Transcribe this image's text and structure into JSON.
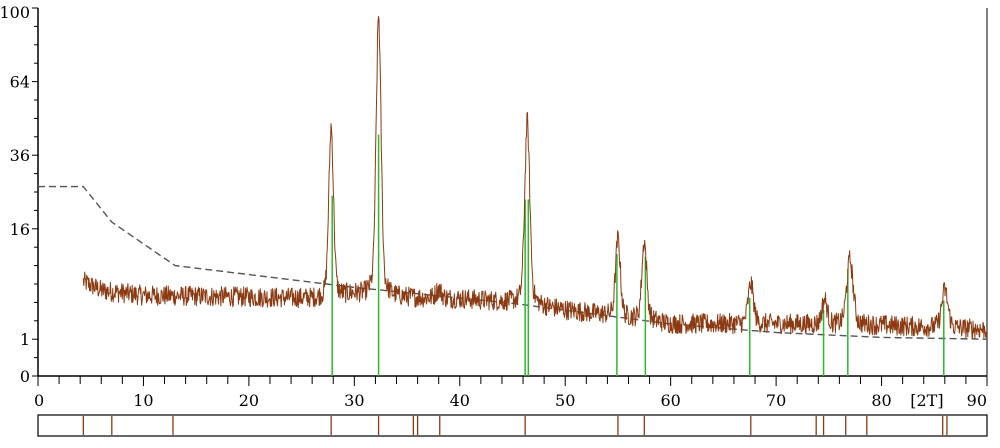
{
  "chart_data": {
    "type": "line",
    "title": "",
    "xlabel": "[2T]",
    "ylabel": "",
    "xlim": [
      0,
      90
    ],
    "ylim_sqrt": [
      0,
      100
    ],
    "y_scale": "square-root",
    "x_ticks": [
      0,
      10,
      20,
      30,
      40,
      50,
      60,
      70,
      80,
      90
    ],
    "x_tick_labels": [
      "0",
      "10",
      "20",
      "30",
      "40",
      "50",
      "60",
      "70",
      "80",
      "90"
    ],
    "y_ticks": [
      0,
      1,
      16,
      36,
      64,
      100
    ],
    "y_tick_labels": [
      "0",
      "1",
      "16",
      "36",
      "64",
      "100"
    ],
    "grid": false,
    "series": [
      {
        "role": "measured-pattern",
        "color": "#8b3a12",
        "x_start": 4.3,
        "x_end": 90,
        "baseline": [
          [
            4.3,
            6.6
          ],
          [
            6,
            5.4
          ],
          [
            10,
            4.8
          ],
          [
            20,
            4.6
          ],
          [
            27,
            4.4
          ],
          [
            30,
            4.9
          ],
          [
            32,
            4.6
          ],
          [
            40,
            4.4
          ],
          [
            45,
            4.0
          ],
          [
            50,
            3.2
          ],
          [
            56,
            2.5
          ],
          [
            60,
            2.0
          ],
          [
            70,
            2.0
          ],
          [
            80,
            1.9
          ],
          [
            90,
            1.6
          ]
        ],
        "peaks": [
          {
            "x": 27.8,
            "height": 46,
            "width": 0.28
          },
          {
            "x": 32.3,
            "height": 96,
            "width": 0.28
          },
          {
            "x": 38.0,
            "height": 5.5,
            "width": 0.4
          },
          {
            "x": 46.4,
            "height": 48,
            "width": 0.3
          },
          {
            "x": 55.0,
            "height": 14,
            "width": 0.3
          },
          {
            "x": 57.5,
            "height": 13.5,
            "width": 0.3
          },
          {
            "x": 67.6,
            "height": 6.3,
            "width": 0.35
          },
          {
            "x": 74.6,
            "height": 4.3,
            "width": 0.35
          },
          {
            "x": 77.0,
            "height": 10.0,
            "width": 0.4
          },
          {
            "x": 86.0,
            "height": 5.5,
            "width": 0.4
          }
        ]
      },
      {
        "role": "background",
        "color": "#555555",
        "style": "dashed",
        "points": [
          [
            0,
            26.5
          ],
          [
            4.3,
            26.5
          ],
          [
            7.0,
            17.5
          ],
          [
            13.0,
            9.0
          ],
          [
            30.0,
            5.8
          ],
          [
            45.0,
            3.9
          ],
          [
            60.0,
            2.0
          ],
          [
            70.0,
            1.4
          ],
          [
            80.0,
            1.1
          ],
          [
            90.0,
            1.0
          ]
        ]
      }
    ],
    "reference_lines": {
      "color": "#2eb82e",
      "sticks": [
        {
          "x": 27.9,
          "height": 24
        },
        {
          "x": 32.3,
          "height": 43
        },
        {
          "x": 46.2,
          "height": 23
        },
        {
          "x": 46.5,
          "height": 23
        },
        {
          "x": 54.9,
          "height": 11
        },
        {
          "x": 57.6,
          "height": 10.5
        },
        {
          "x": 67.5,
          "height": 4.5
        },
        {
          "x": 74.5,
          "height": 3.2
        },
        {
          "x": 76.8,
          "height": 8.5
        },
        {
          "x": 85.9,
          "height": 4.2
        }
      ]
    },
    "marker_strip": {
      "color": "#8b3a12",
      "positions": [
        4.3,
        7.0,
        12.8,
        27.8,
        32.3,
        35.6,
        36.0,
        38.1,
        46.2,
        55.0,
        57.5,
        67.6,
        73.8,
        74.5,
        76.6,
        78.6,
        85.8,
        86.2
      ]
    }
  }
}
